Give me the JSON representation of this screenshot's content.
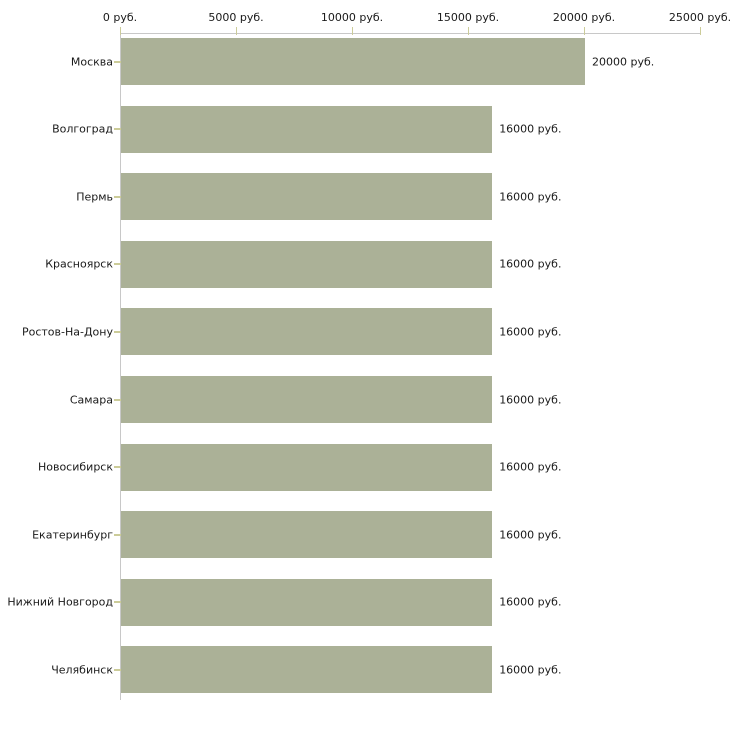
{
  "chart_data": {
    "type": "bar",
    "orientation": "horizontal",
    "title": "",
    "categories": [
      "Москва",
      "Волгоград",
      "Пермь",
      "Красноярск",
      "Ростов-На-Дону",
      "Самара",
      "Новосибирск",
      "Екатеринбург",
      "Нижний Новгород",
      "Челябинск"
    ],
    "values": [
      20000,
      16000,
      16000,
      16000,
      16000,
      16000,
      16000,
      16000,
      16000,
      16000
    ],
    "value_labels": [
      "20000 руб.",
      "16000 руб.",
      "16000 руб.",
      "16000 руб.",
      "16000 руб.",
      "16000 руб.",
      "16000 руб.",
      "16000 руб.",
      "16000 руб.",
      "16000 руб."
    ],
    "x_axis": {
      "position": "top",
      "range": [
        0,
        25000
      ],
      "ticks": [
        0,
        5000,
        10000,
        15000,
        20000,
        25000
      ],
      "tick_labels": [
        "0 руб.",
        "5000 руб.",
        "10000 руб.",
        "15000 руб.",
        "20000 руб.",
        "25000 руб."
      ]
    },
    "grid": false,
    "legend": false,
    "colors": {
      "bar": "#abb197",
      "axis_line": "#c8c8c8",
      "tick_mark": "#cccc99",
      "text": "#1a1a1a",
      "background": "#ffffff"
    }
  }
}
